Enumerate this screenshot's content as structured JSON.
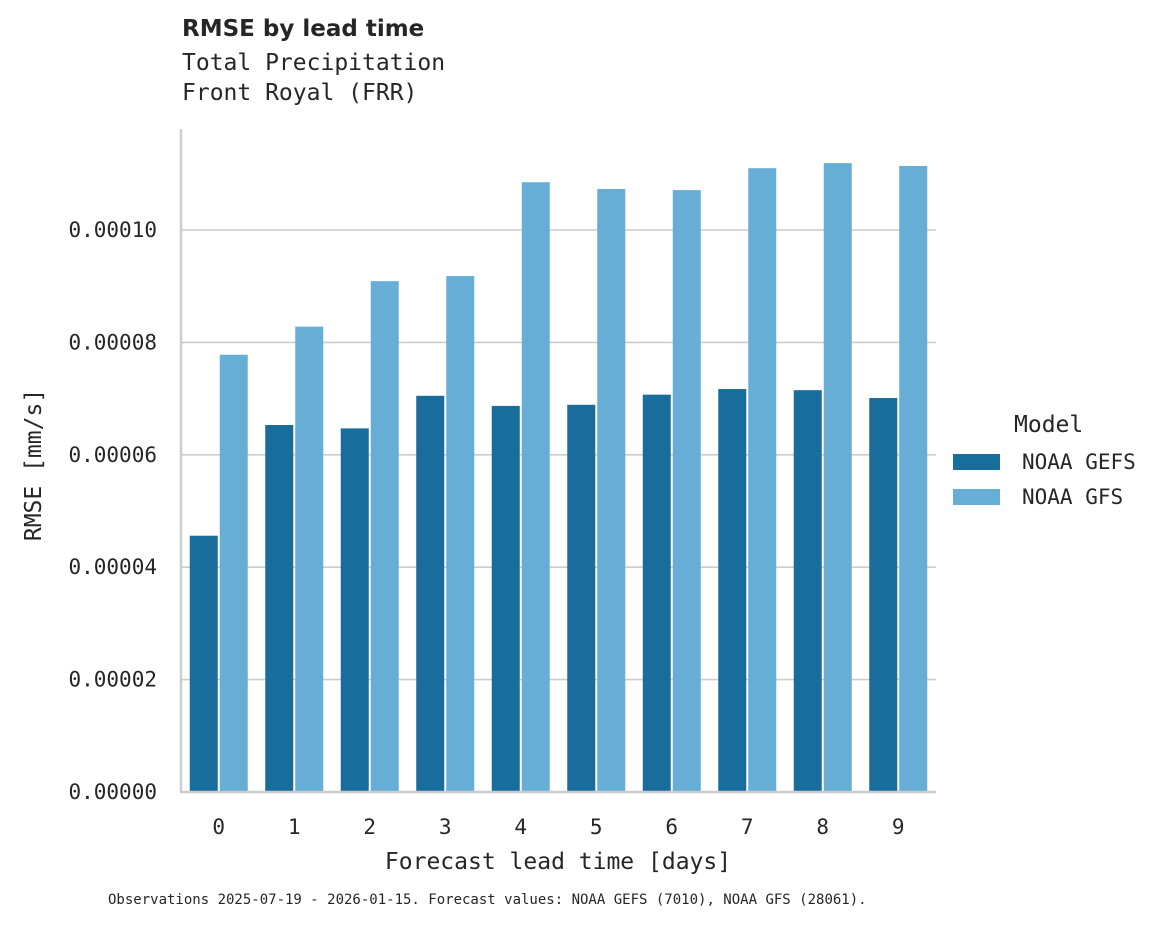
{
  "title": "RMSE by lead time",
  "subtitle_lines": [
    "Total Precipitation",
    "Front Royal (FRR)"
  ],
  "footnote": "Observations 2025-07-19 - 2026-01-15. Forecast values: NOAA GEFS (7010), NOAA GFS (28061).",
  "legend": {
    "title": "Model",
    "items": [
      {
        "label": "NOAA GEFS",
        "color": "#186d9c"
      },
      {
        "label": "NOAA GFS",
        "color": "#67aed6"
      }
    ]
  },
  "colors": {
    "grid": "#cccccc",
    "axis": "#cccccc",
    "text": "#262626"
  },
  "chart_data": {
    "type": "bar",
    "title": "RMSE by lead time",
    "subtitle": "Total Precipitation / Front Royal (FRR)",
    "xlabel": "Forecast lead time [days]",
    "ylabel": "RMSE [mm/s]",
    "categories": [
      "0",
      "1",
      "2",
      "3",
      "4",
      "5",
      "6",
      "7",
      "8",
      "9"
    ],
    "series": [
      {
        "name": "NOAA GEFS",
        "color": "#186d9c",
        "values": [
          4.56e-05,
          6.53e-05,
          6.47e-05,
          7.05e-05,
          6.87e-05,
          6.89e-05,
          7.07e-05,
          7.17e-05,
          7.15e-05,
          7.01e-05
        ]
      },
      {
        "name": "NOAA GFS",
        "color": "#67aed6",
        "values": [
          7.78e-05,
          8.28e-05,
          9.09e-05,
          9.18e-05,
          0.0001085,
          0.0001073,
          0.0001071,
          0.000111,
          0.0001119,
          0.0001114
        ]
      }
    ],
    "yticks": [
      "0.00000",
      "0.00002",
      "0.00004",
      "0.00006",
      "0.00008",
      "0.00010"
    ],
    "ytick_values": [
      0,
      2e-05,
      4e-05,
      6e-05,
      8e-05,
      0.0001
    ],
    "ylim": [
      0,
      0.000118
    ],
    "grid": "horizontal",
    "legend_position": "right"
  }
}
